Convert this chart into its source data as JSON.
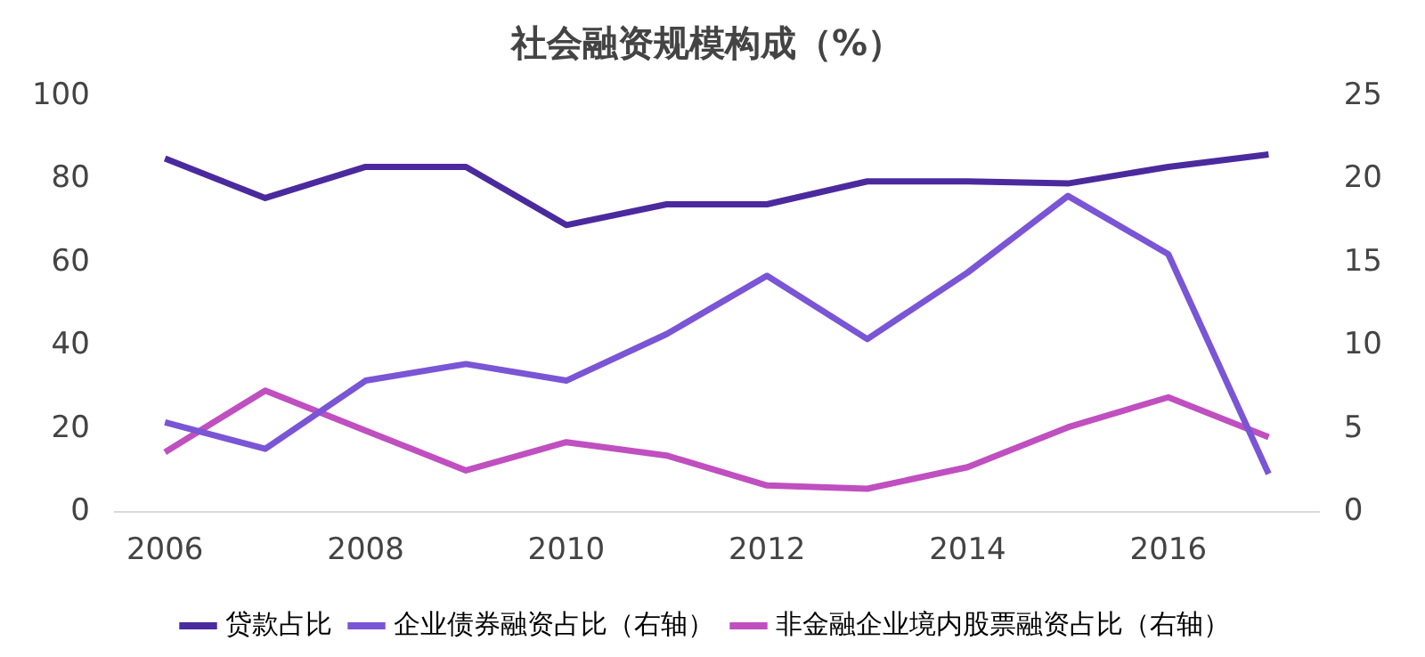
{
  "chart_data": {
    "type": "line",
    "title": "社会融资规模构成（%）",
    "x": [
      2006,
      2007,
      2008,
      2009,
      2010,
      2011,
      2012,
      2013,
      2014,
      2015,
      2016,
      2017
    ],
    "xlim": [
      2005.5,
      2017.5
    ],
    "xticks": [
      2006,
      2008,
      2010,
      2012,
      2014,
      2016
    ],
    "ylim": [
      0,
      100
    ],
    "yticks": [
      0,
      20,
      40,
      60,
      80,
      100
    ],
    "y2lim": [
      0,
      25
    ],
    "y2ticks": [
      0,
      5,
      10,
      15,
      20,
      25
    ],
    "grid": false,
    "legend": "bottom",
    "marker": "none",
    "line_style": "solid",
    "series": [
      {
        "name": "贷款占比",
        "color": "#4b2a9e",
        "values": [
          85,
          75.5,
          83,
          83,
          69,
          74,
          74,
          79.5,
          79.5,
          79,
          83,
          86
        ]
      },
      {
        "name": "企业债券融资占比（右轴）",
        "color": "#7a55d6",
        "axis": "y2",
        "values": [
          5.4,
          3.8,
          7.9,
          8.9,
          7.9,
          10.7,
          14.2,
          10.4,
          14.4,
          19,
          15.5,
          2.3
        ]
      },
      {
        "name": "非金融企业境内股票融资占比（右轴）",
        "color": "#c04fc0",
        "axis": "y2",
        "values": [
          3.6,
          7.3,
          4.9,
          2.5,
          4.2,
          3.4,
          1.6,
          1.4,
          2.7,
          5.1,
          6.9,
          4.5
        ]
      }
    ]
  }
}
